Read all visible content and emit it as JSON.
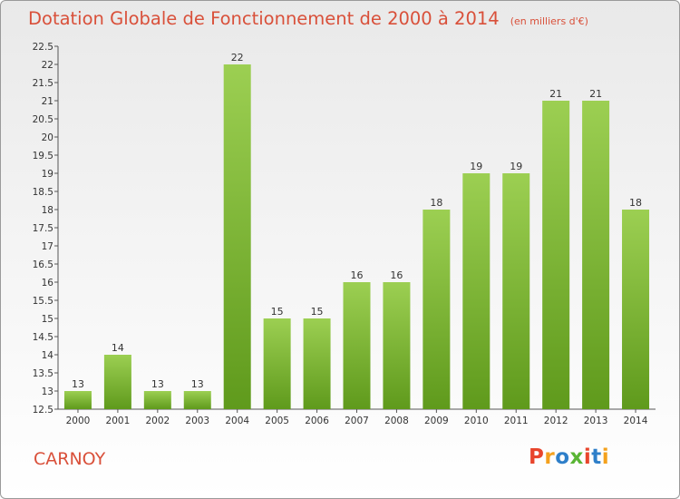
{
  "chart_data": {
    "type": "bar",
    "title": "Dotation Globale de Fonctionnement de 2000 à 2014",
    "unit_note": "(en milliers d'€)",
    "categories": [
      "2000",
      "2001",
      "2002",
      "2003",
      "2004",
      "2005",
      "2006",
      "2007",
      "2008",
      "2009",
      "2010",
      "2011",
      "2012",
      "2013",
      "2014"
    ],
    "values": [
      13,
      14,
      13,
      13,
      22,
      15,
      15,
      16,
      16,
      18,
      19,
      19,
      21,
      21,
      18
    ],
    "value_labels": [
      "13",
      "14",
      "13",
      "13",
      "22",
      "15",
      "15",
      "16",
      "16",
      "18",
      "19",
      "19",
      "21",
      "21",
      "18"
    ],
    "ylim": [
      12.5,
      22.5
    ],
    "yticks": [
      "12.5",
      "13",
      "13.5",
      "14",
      "14.5",
      "15",
      "15.5",
      "16",
      "16.5",
      "17",
      "17.5",
      "18",
      "18.5",
      "19",
      "19.5",
      "20",
      "20.5",
      "21",
      "21.5",
      "22",
      "22.5"
    ],
    "grid": false,
    "bar_color": "#7ab82c"
  },
  "commune": "CARNOY",
  "logo_text": "Proxiti",
  "colors": {
    "title": "#d9503a",
    "logo": [
      "#e8452c",
      "#f4a11d",
      "#2e7fc9",
      "#59b534",
      "#e8452c",
      "#2e7fc9",
      "#f4a11d"
    ]
  }
}
